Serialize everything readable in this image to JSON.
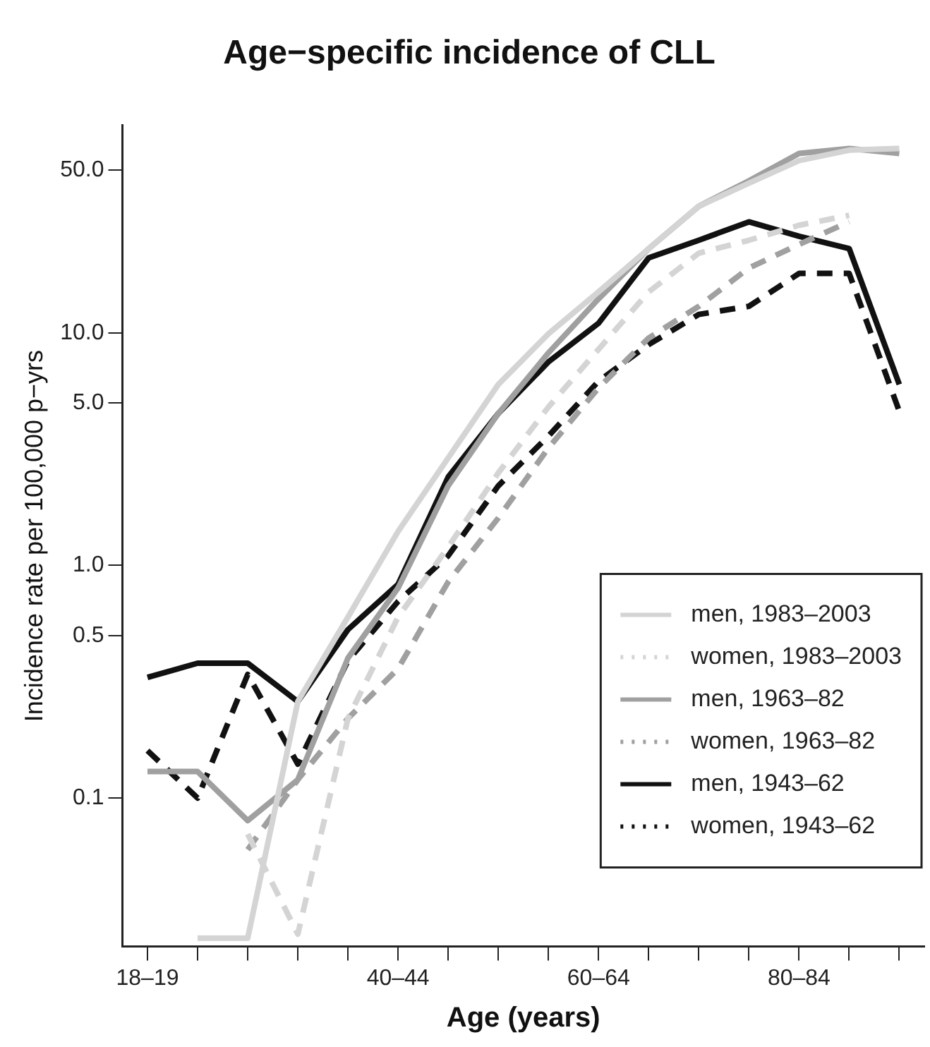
{
  "chart_data": {
    "type": "line",
    "title": "Age−specific incidence of CLL",
    "xlabel": "Age (years)",
    "ylabel": "Incidence rate per 100,000 p−yrs",
    "log": "y",
    "grid": false,
    "legend": "bottom right",
    "categories": [
      "18–19",
      null,
      null,
      null,
      null,
      "40–44",
      null,
      null,
      null,
      "60–64",
      null,
      null,
      null,
      "80–84",
      null,
      null
    ],
    "ylim": [
      0.023,
      78
    ],
    "yticks": [
      0.1,
      0.5,
      {
        "value": 1,
        "label": "1.0"
      },
      {
        "value": 5,
        "label": "5.0"
      },
      {
        "value": 10,
        "label": "10.0"
      },
      {
        "value": 50,
        "label": "50.0"
      }
    ],
    "series": [
      {
        "name": "men, 1983–2003",
        "color": "#d4d4d4",
        "line_style": "solid",
        "values": [
          null,
          0.025,
          0.025,
          0.26,
          0.6,
          1.4,
          2.9,
          6,
          9.9,
          15,
          23,
          35,
          44,
          55,
          61,
          62
        ]
      },
      {
        "name": "women, 1983–2003",
        "color": "#d4d4d4",
        "line_style": "dashed",
        "values": [
          null,
          null,
          0.07,
          0.026,
          0.22,
          0.6,
          1.2,
          2.5,
          4.8,
          8.5,
          15,
          22,
          25,
          29,
          32,
          null
        ]
      },
      {
        "name": "men, 1963–82",
        "color": "#a0a0a0",
        "line_style": "solid",
        "values": [
          0.13,
          0.13,
          0.08,
          0.12,
          0.4,
          0.8,
          2.2,
          4.5,
          8.2,
          14,
          23,
          35,
          45,
          59,
          62,
          59
        ]
      },
      {
        "name": "women, 1963–82",
        "color": "#a0a0a0",
        "line_style": "dashed",
        "values": [
          null,
          null,
          0.06,
          0.12,
          0.22,
          0.36,
          0.85,
          1.6,
          3.2,
          5.8,
          9.5,
          13,
          19,
          24,
          30,
          null
        ]
      },
      {
        "name": "men, 1943–62",
        "color": "#111111",
        "line_style": "solid",
        "values": [
          0.33,
          0.38,
          0.38,
          0.26,
          0.53,
          0.83,
          2.4,
          4.5,
          7.5,
          11,
          21,
          25,
          30,
          26,
          23,
          6
        ]
      },
      {
        "name": "women, 1943–62",
        "color": "#111111",
        "line_style": "dashed",
        "values": [
          0.16,
          0.1,
          0.34,
          0.14,
          0.39,
          0.7,
          1.1,
          2.2,
          3.6,
          6.2,
          8.9,
          12,
          13,
          18,
          18,
          4.6
        ]
      }
    ]
  }
}
